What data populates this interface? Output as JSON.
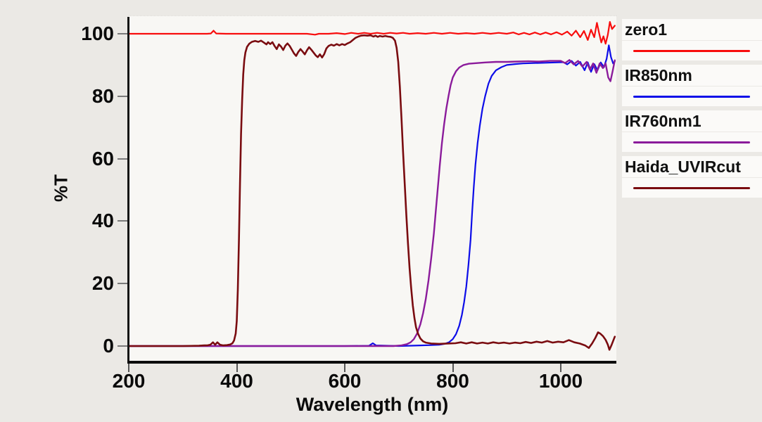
{
  "window": {
    "background": "#ebe9e5",
    "plot_background": "#f8f7f4"
  },
  "chart_data": {
    "type": "line",
    "title": "",
    "xlabel": "Wavelength (nm)",
    "ylabel": "%T",
    "xlim": [
      200,
      1100
    ],
    "ylim": [
      0,
      100
    ],
    "x_ticks": [
      200,
      400,
      600,
      800,
      1000
    ],
    "y_ticks": [
      0,
      20,
      40,
      60,
      80,
      100
    ],
    "grid": false,
    "legend_position": "right",
    "series": [
      {
        "name": "zero1",
        "color": "#f80d0d",
        "stroke_width": 2.2,
        "points": [
          [
            200,
            100
          ],
          [
            240,
            100
          ],
          [
            280,
            100
          ],
          [
            320,
            100
          ],
          [
            345,
            100
          ],
          [
            352,
            100.1
          ],
          [
            357,
            101
          ],
          [
            362,
            100.1
          ],
          [
            380,
            100
          ],
          [
            420,
            100
          ],
          [
            460,
            100
          ],
          [
            500,
            100
          ],
          [
            530,
            100
          ],
          [
            545,
            99.7
          ],
          [
            552,
            100
          ],
          [
            570,
            100
          ],
          [
            585,
            100.2
          ],
          [
            600,
            99.9
          ],
          [
            612,
            100.3
          ],
          [
            625,
            100
          ],
          [
            636,
            100.3
          ],
          [
            648,
            100
          ],
          [
            660,
            100.3
          ],
          [
            672,
            100
          ],
          [
            684,
            100.3
          ],
          [
            696,
            100.1
          ],
          [
            708,
            100.3
          ],
          [
            720,
            100
          ],
          [
            735,
            100.2
          ],
          [
            750,
            100
          ],
          [
            765,
            100.3
          ],
          [
            780,
            100
          ],
          [
            795,
            100.3
          ],
          [
            810,
            100
          ],
          [
            825,
            100.2
          ],
          [
            840,
            100
          ],
          [
            855,
            100.3
          ],
          [
            870,
            100
          ],
          [
            885,
            100.3
          ],
          [
            900,
            100
          ],
          [
            912,
            100.4
          ],
          [
            922,
            99.8
          ],
          [
            932,
            100.3
          ],
          [
            942,
            99.8
          ],
          [
            952,
            100.4
          ],
          [
            962,
            99.8
          ],
          [
            972,
            100.4
          ],
          [
            982,
            99.8
          ],
          [
            992,
            100.5
          ],
          [
            1002,
            99.7
          ],
          [
            1012,
            100.7
          ],
          [
            1020,
            99.4
          ],
          [
            1028,
            101
          ],
          [
            1036,
            98.9
          ],
          [
            1043,
            100.9
          ],
          [
            1050,
            98
          ],
          [
            1056,
            101.3
          ],
          [
            1062,
            98.9
          ],
          [
            1067,
            103.5
          ],
          [
            1071,
            100.2
          ],
          [
            1075,
            97.2
          ],
          [
            1079,
            99.2
          ],
          [
            1083,
            96.8
          ],
          [
            1087,
            99.6
          ],
          [
            1091,
            103.8
          ],
          [
            1095,
            101.5
          ],
          [
            1100,
            102.6
          ]
        ]
      },
      {
        "name": "IR850nm",
        "color": "#0d0de8",
        "stroke_width": 2.2,
        "points": [
          [
            200,
            0
          ],
          [
            300,
            0
          ],
          [
            400,
            0
          ],
          [
            500,
            0
          ],
          [
            600,
            0
          ],
          [
            645,
            0.1
          ],
          [
            652,
            0.9
          ],
          [
            658,
            0.2
          ],
          [
            700,
            0
          ],
          [
            740,
            0.2
          ],
          [
            760,
            0.3
          ],
          [
            775,
            0.4
          ],
          [
            785,
            0.7
          ],
          [
            793,
            1.2
          ],
          [
            800,
            2.2
          ],
          [
            806,
            3.8
          ],
          [
            812,
            6.5
          ],
          [
            817,
            10
          ],
          [
            821,
            14
          ],
          [
            825,
            19
          ],
          [
            829,
            26
          ],
          [
            833,
            34
          ],
          [
            836,
            43
          ],
          [
            839,
            51
          ],
          [
            842,
            58
          ],
          [
            846,
            65
          ],
          [
            850,
            70.5
          ],
          [
            855,
            76
          ],
          [
            860,
            80
          ],
          [
            866,
            84
          ],
          [
            872,
            86.5
          ],
          [
            880,
            88.3
          ],
          [
            890,
            89.3
          ],
          [
            900,
            90
          ],
          [
            915,
            90.3
          ],
          [
            930,
            90.5
          ],
          [
            950,
            90.6
          ],
          [
            970,
            90.7
          ],
          [
            990,
            90.8
          ],
          [
            1005,
            90.9
          ],
          [
            1012,
            90.2
          ],
          [
            1020,
            91.3
          ],
          [
            1028,
            89.8
          ],
          [
            1036,
            91
          ],
          [
            1044,
            88.3
          ],
          [
            1050,
            90.8
          ],
          [
            1056,
            87.8
          ],
          [
            1062,
            90.3
          ],
          [
            1068,
            88.3
          ],
          [
            1074,
            90.8
          ],
          [
            1080,
            89.3
          ],
          [
            1085,
            92
          ],
          [
            1089,
            96.3
          ],
          [
            1093,
            92.5
          ],
          [
            1097,
            90.5
          ],
          [
            1100,
            91.2
          ]
        ]
      },
      {
        "name": "IR760nm1",
        "color": "#8b1b9b",
        "stroke_width": 2.4,
        "points": [
          [
            200,
            0
          ],
          [
            300,
            0
          ],
          [
            400,
            0
          ],
          [
            500,
            0
          ],
          [
            600,
            0
          ],
          [
            650,
            0
          ],
          [
            690,
            0
          ],
          [
            705,
            0.2
          ],
          [
            715,
            0.6
          ],
          [
            722,
            1.2
          ],
          [
            728,
            2.2
          ],
          [
            734,
            4
          ],
          [
            740,
            7
          ],
          [
            745,
            10.5
          ],
          [
            750,
            15
          ],
          [
            755,
            21
          ],
          [
            760,
            28
          ],
          [
            765,
            36
          ],
          [
            768,
            42
          ],
          [
            772,
            50
          ],
          [
            776,
            58
          ],
          [
            780,
            65
          ],
          [
            784,
            71
          ],
          [
            788,
            76
          ],
          [
            792,
            80
          ],
          [
            796,
            83.5
          ],
          [
            800,
            86
          ],
          [
            806,
            88
          ],
          [
            812,
            89.2
          ],
          [
            820,
            90
          ],
          [
            830,
            90.4
          ],
          [
            845,
            90.6
          ],
          [
            860,
            90.8
          ],
          [
            880,
            91
          ],
          [
            900,
            91
          ],
          [
            920,
            91.1
          ],
          [
            940,
            91.2
          ],
          [
            960,
            91.1
          ],
          [
            980,
            91.3
          ],
          [
            1000,
            91.3
          ],
          [
            1008,
            90.6
          ],
          [
            1016,
            91.6
          ],
          [
            1024,
            90.2
          ],
          [
            1032,
            91.3
          ],
          [
            1040,
            89.5
          ],
          [
            1048,
            91
          ],
          [
            1054,
            88.5
          ],
          [
            1060,
            90.5
          ],
          [
            1066,
            87.5
          ],
          [
            1072,
            90.5
          ],
          [
            1078,
            89
          ],
          [
            1083,
            90.5
          ],
          [
            1088,
            86
          ],
          [
            1092,
            84.8
          ],
          [
            1096,
            88
          ],
          [
            1100,
            91.5
          ]
        ]
      },
      {
        "name": "Haida_UVIRcut",
        "color": "#7a0c10",
        "stroke_width": 2.6,
        "points": [
          [
            200,
            0
          ],
          [
            250,
            0
          ],
          [
            300,
            0
          ],
          [
            330,
            0.1
          ],
          [
            340,
            0.2
          ],
          [
            345,
            0.2
          ],
          [
            351,
            0.4
          ],
          [
            356,
            1.2
          ],
          [
            360,
            0.4
          ],
          [
            364,
            1.2
          ],
          [
            369,
            0.4
          ],
          [
            375,
            0.2
          ],
          [
            382,
            0.3
          ],
          [
            388,
            0.5
          ],
          [
            392,
            0.9
          ],
          [
            395,
            1.8
          ],
          [
            398,
            4
          ],
          [
            400,
            8
          ],
          [
            402,
            18
          ],
          [
            404,
            34
          ],
          [
            406,
            52
          ],
          [
            408,
            68
          ],
          [
            410,
            79
          ],
          [
            412,
            87
          ],
          [
            414,
            91.5
          ],
          [
            416,
            94
          ],
          [
            419,
            95.8
          ],
          [
            423,
            96.8
          ],
          [
            428,
            97.4
          ],
          [
            434,
            97.7
          ],
          [
            440,
            97.4
          ],
          [
            445,
            97.8
          ],
          [
            450,
            97.2
          ],
          [
            455,
            96.6
          ],
          [
            458,
            97.3
          ],
          [
            462,
            96.7
          ],
          [
            466,
            97.3
          ],
          [
            470,
            96.1
          ],
          [
            474,
            95.1
          ],
          [
            478,
            96.6
          ],
          [
            482,
            95.9
          ],
          [
            486,
            94.8
          ],
          [
            490,
            96.2
          ],
          [
            494,
            96.9
          ],
          [
            498,
            96.1
          ],
          [
            502,
            94.9
          ],
          [
            506,
            93.7
          ],
          [
            510,
            92.9
          ],
          [
            514,
            94.2
          ],
          [
            518,
            95.1
          ],
          [
            522,
            94.3
          ],
          [
            526,
            93.4
          ],
          [
            530,
            94.7
          ],
          [
            534,
            95.7
          ],
          [
            538,
            94.9
          ],
          [
            542,
            94
          ],
          [
            546,
            93.1
          ],
          [
            550,
            92.5
          ],
          [
            554,
            93.4
          ],
          [
            558,
            92.4
          ],
          [
            562,
            93.5
          ],
          [
            566,
            95.3
          ],
          [
            570,
            96.1
          ],
          [
            575,
            96.5
          ],
          [
            580,
            96.2
          ],
          [
            585,
            96.7
          ],
          [
            590,
            96.3
          ],
          [
            595,
            96.7
          ],
          [
            600,
            96.4
          ],
          [
            605,
            96.9
          ],
          [
            610,
            97.3
          ],
          [
            615,
            98
          ],
          [
            620,
            98.7
          ],
          [
            625,
            99.1
          ],
          [
            630,
            99.4
          ],
          [
            636,
            99.5
          ],
          [
            642,
            99.4
          ],
          [
            648,
            99.5
          ],
          [
            653,
            99.1
          ],
          [
            657,
            99.4
          ],
          [
            661,
            99
          ],
          [
            665,
            99.3
          ],
          [
            670,
            99.1
          ],
          [
            675,
            99.3
          ],
          [
            680,
            99.1
          ],
          [
            685,
            99
          ],
          [
            689,
            98.7
          ],
          [
            693,
            97.8
          ],
          [
            696,
            95.5
          ],
          [
            699,
            91
          ],
          [
            702,
            83
          ],
          [
            705,
            73
          ],
          [
            708,
            62
          ],
          [
            711,
            52
          ],
          [
            714,
            42
          ],
          [
            717,
            33
          ],
          [
            720,
            25
          ],
          [
            723,
            18.5
          ],
          [
            726,
            13
          ],
          [
            729,
            9
          ],
          [
            732,
            6
          ],
          [
            736,
            3.8
          ],
          [
            740,
            2.4
          ],
          [
            745,
            1.5
          ],
          [
            750,
            1.1
          ],
          [
            760,
            0.8
          ],
          [
            775,
            0.7
          ],
          [
            790,
            0.8
          ],
          [
            805,
            0.9
          ],
          [
            815,
            1.2
          ],
          [
            825,
            0.8
          ],
          [
            835,
            1.2
          ],
          [
            845,
            0.8
          ],
          [
            855,
            1.1
          ],
          [
            865,
            0.8
          ],
          [
            875,
            1.2
          ],
          [
            885,
            0.9
          ],
          [
            895,
            1.1
          ],
          [
            905,
            0.8
          ],
          [
            915,
            1.1
          ],
          [
            925,
            0.9
          ],
          [
            935,
            1.3
          ],
          [
            945,
            1
          ],
          [
            955,
            1.4
          ],
          [
            965,
            1.1
          ],
          [
            975,
            1.6
          ],
          [
            985,
            1.1
          ],
          [
            995,
            1.4
          ],
          [
            1005,
            1.2
          ],
          [
            1015,
            1.9
          ],
          [
            1025,
            1.2
          ],
          [
            1035,
            0.8
          ],
          [
            1045,
            0.2
          ],
          [
            1052,
            -0.6
          ],
          [
            1058,
            0.8
          ],
          [
            1064,
            2.6
          ],
          [
            1069,
            4.4
          ],
          [
            1073,
            4
          ],
          [
            1078,
            3.2
          ],
          [
            1083,
            2
          ],
          [
            1087,
            0.5
          ],
          [
            1090,
            -1.2
          ],
          [
            1094,
            0.3
          ],
          [
            1100,
            3
          ]
        ]
      }
    ]
  }
}
